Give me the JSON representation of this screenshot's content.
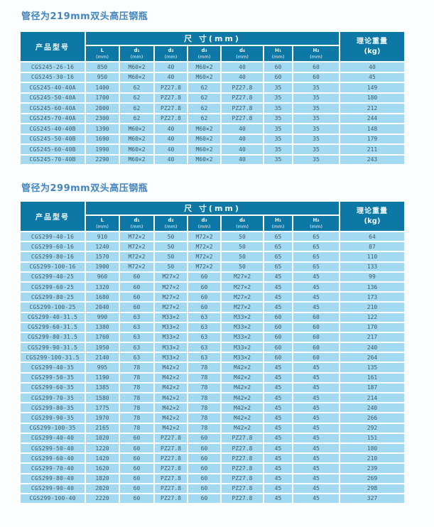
{
  "page": {
    "background": "#fcfeff"
  },
  "colors": {
    "header_bg": "#0d77a6",
    "row_bg": "#a4daf1",
    "grid": "#ffffff",
    "title_text": "#4285c2",
    "cell_text": "#3e5a68",
    "header_text": "#ffffff"
  },
  "header": {
    "product": "产品型号",
    "size_group": "尺  寸(mm)",
    "weight_line1": "理论重量",
    "weight_line2": "(kg)",
    "columns": [
      {
        "label": "L",
        "unit": "(mm)"
      },
      {
        "label": "d₁",
        "unit": "(mm)"
      },
      {
        "label": "d₂",
        "unit": "(mm)"
      },
      {
        "label": "d₃",
        "unit": "(mm)"
      },
      {
        "label": "d₄",
        "unit": "(mm)"
      },
      {
        "label": "H₁",
        "unit": "(mm)"
      },
      {
        "label": "H₂",
        "unit": "(mm)"
      }
    ]
  },
  "tables": [
    {
      "title": "管径为219mm双头高压钢瓶",
      "rows": [
        [
          "CGS245-26-16",
          "850",
          "M60×2",
          "40",
          "M60×2",
          "40",
          "60",
          "60",
          "40"
        ],
        [
          "CGS245-30-16",
          "950",
          "M60×2",
          "40",
          "M60×2",
          "40",
          "60",
          "60",
          "45"
        ],
        [
          "CGS245-40-40A",
          "1400",
          "62",
          "PZ27.8",
          "62",
          "PZ27.8",
          "35",
          "35",
          "149"
        ],
        [
          "CGS245-50-40A",
          "1700",
          "62",
          "PZ27.8",
          "62",
          "PZ27.8",
          "35",
          "35",
          "180"
        ],
        [
          "CGS245-60-40A",
          "2000",
          "62",
          "PZ27.8",
          "62",
          "PZ27.8",
          "35",
          "35",
          "212"
        ],
        [
          "CGS245-70-40A",
          "2300",
          "62",
          "PZ27.8",
          "62",
          "PZ27.8",
          "35",
          "35",
          "244"
        ],
        [
          "CGS245-40-40B",
          "1390",
          "M60×2",
          "40",
          "M60×2",
          "40",
          "35",
          "35",
          "148"
        ],
        [
          "CGS245-50-40B",
          "1690",
          "M60×2",
          "40",
          "M60×2",
          "40",
          "35",
          "35",
          "179"
        ],
        [
          "CGS245-60-40B",
          "1990",
          "M60×2",
          "40",
          "M60×2",
          "40",
          "35",
          "35",
          "211"
        ],
        [
          "CGS245-70-40B",
          "2290",
          "M60×2",
          "40",
          "M60×2",
          "40",
          "35",
          "35",
          "243"
        ]
      ]
    },
    {
      "title": "管径为299mm双头高压钢瓶",
      "rows": [
        [
          "CGS299-40-16",
          "910",
          "M72×2",
          "50",
          "M72×2",
          "50",
          "65",
          "65",
          "64"
        ],
        [
          "CGS299-60-16",
          "1240",
          "M72×2",
          "50",
          "M72×2",
          "50",
          "65",
          "65",
          "87"
        ],
        [
          "CGS299-80-16",
          "1570",
          "M72×2",
          "50",
          "M72×2",
          "50",
          "65",
          "65",
          "110"
        ],
        [
          "CGS299-100-16",
          "1900",
          "M72×2",
          "50",
          "M72×2",
          "50",
          "65",
          "65",
          "133"
        ],
        [
          "CGS299-40-25",
          "960",
          "60",
          "M27×2",
          "60",
          "M27×2",
          "45",
          "45",
          "99"
        ],
        [
          "CGS299-60-25",
          "1320",
          "60",
          "M27×2",
          "60",
          "M27×2",
          "45",
          "45",
          "136"
        ],
        [
          "CGS299-80-25",
          "1680",
          "60",
          "M27×2",
          "60",
          "M27×2",
          "45",
          "45",
          "173"
        ],
        [
          "CGS299-100-25",
          "2040",
          "60",
          "M27×2",
          "60",
          "M27×2",
          "45",
          "45",
          "210"
        ],
        [
          "CGS299-40-31.5",
          "990",
          "63",
          "M33×2",
          "63",
          "M33×2",
          "60",
          "60",
          "122"
        ],
        [
          "CGS299-60-31.5",
          "1380",
          "63",
          "M33×2",
          "63",
          "M33×2",
          "60",
          "60",
          "170"
        ],
        [
          "CGS299-80-31.5",
          "1760",
          "63",
          "M33×2",
          "63",
          "M33×2",
          "60",
          "60",
          "217"
        ],
        [
          "CGS299-90-31.5",
          "1950",
          "63",
          "M33×2",
          "63",
          "M33×2",
          "60",
          "60",
          "240"
        ],
        [
          "CGS299-100-31.5",
          "2140",
          "63",
          "M33×2",
          "63",
          "M33×2",
          "60",
          "60",
          "264"
        ],
        [
          "CGS299-40-35",
          "995",
          "78",
          "M42×2",
          "78",
          "M42×2",
          "45",
          "45",
          "135"
        ],
        [
          "CGS299-50-35",
          "1190",
          "78",
          "M42×2",
          "78",
          "M42×2",
          "45",
          "45",
          "161"
        ],
        [
          "CGS299-60-35",
          "1385",
          "78",
          "M42×2",
          "78",
          "M42×2",
          "45",
          "45",
          "187"
        ],
        [
          "CGS299-70-35",
          "1580",
          "78",
          "M42×2",
          "78",
          "M42×2",
          "45",
          "45",
          "214"
        ],
        [
          "CGS299-80-35",
          "1775",
          "78",
          "M42×2",
          "78",
          "M42×2",
          "45",
          "45",
          "240"
        ],
        [
          "CGS299-90-35",
          "1970",
          "78",
          "M42×2",
          "78",
          "M42×2",
          "45",
          "45",
          "266"
        ],
        [
          "CGS299-100-35",
          "2165",
          "78",
          "M42×2",
          "78",
          "M42×2",
          "45",
          "45",
          "292"
        ],
        [
          "CGS299-40-40",
          "1020",
          "60",
          "PZ27.8",
          "60",
          "PZ27.8",
          "45",
          "45",
          "151"
        ],
        [
          "CGS299-50-40",
          "1220",
          "60",
          "PZ27.8",
          "60",
          "PZ27.8",
          "45",
          "45",
          "180"
        ],
        [
          "CGS299-60-40",
          "1420",
          "60",
          "PZ27.8",
          "60",
          "PZ27.8",
          "45",
          "45",
          "210"
        ],
        [
          "CGS299-70-40",
          "1620",
          "60",
          "PZ27.8",
          "60",
          "PZ27.8",
          "45",
          "45",
          "239"
        ],
        [
          "CGS299-80-40",
          "1820",
          "60",
          "PZ27.8",
          "60",
          "PZ27.8",
          "45",
          "45",
          "269"
        ],
        [
          "CGS299-90-40",
          "2020",
          "60",
          "PZ27.8",
          "60",
          "PZ27.8",
          "45",
          "45",
          "298"
        ],
        [
          "CGS299-100-40",
          "2220",
          "60",
          "PZ27.8",
          "60",
          "PZ27.8",
          "45",
          "45",
          "327"
        ]
      ]
    }
  ]
}
